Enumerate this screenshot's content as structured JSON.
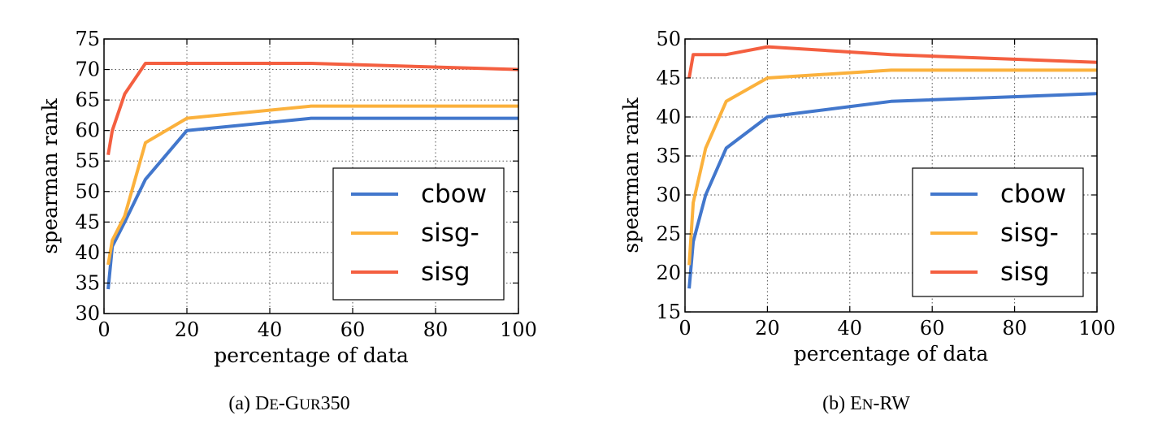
{
  "chart_data": [
    {
      "type": "line",
      "xlabel": "percentage of data",
      "ylabel": "spearman rank",
      "xlim": [
        0,
        100
      ],
      "ylim": [
        30,
        75
      ],
      "xticks": [
        0,
        20,
        40,
        60,
        80,
        100
      ],
      "yticks": [
        30,
        35,
        40,
        45,
        50,
        55,
        60,
        65,
        70,
        75
      ],
      "grid": true,
      "legend_position": "lower-right",
      "caption_prefix": "(a) ",
      "caption_parts": [
        {
          "text": "D",
          "small": false
        },
        {
          "text": "E",
          "small": true
        },
        {
          "text": "-G",
          "small": false
        },
        {
          "text": "UR",
          "small": true
        },
        {
          "text": "350",
          "small": false
        }
      ],
      "series": [
        {
          "name": "cbow",
          "color": "#4277cc",
          "x": [
            1,
            2,
            5,
            10,
            20,
            50,
            100
          ],
          "y": [
            34,
            41,
            45,
            52,
            60,
            62,
            62
          ]
        },
        {
          "name": "sisg-",
          "color": "#fbb13c",
          "x": [
            1,
            2,
            5,
            10,
            20,
            50,
            100
          ],
          "y": [
            38,
            42,
            46,
            58,
            62,
            64,
            64
          ]
        },
        {
          "name": "sisg",
          "color": "#f45f40",
          "x": [
            1,
            2,
            5,
            10,
            20,
            50,
            100
          ],
          "y": [
            56,
            60,
            66,
            71,
            71,
            71,
            70
          ]
        }
      ]
    },
    {
      "type": "line",
      "xlabel": "percentage of data",
      "ylabel": "spearman rank",
      "xlim": [
        0,
        100
      ],
      "ylim": [
        15,
        50
      ],
      "xticks": [
        0,
        20,
        40,
        60,
        80,
        100
      ],
      "yticks": [
        15,
        20,
        25,
        30,
        35,
        40,
        45,
        50
      ],
      "grid": true,
      "legend_position": "lower-right",
      "caption_prefix": "(b) ",
      "caption_parts": [
        {
          "text": "E",
          "small": false
        },
        {
          "text": "N",
          "small": true
        },
        {
          "text": "-RW",
          "small": false
        }
      ],
      "series": [
        {
          "name": "cbow",
          "color": "#4277cc",
          "x": [
            1,
            2,
            5,
            10,
            20,
            50,
            100
          ],
          "y": [
            18,
            24,
            30,
            36,
            40,
            42,
            43
          ]
        },
        {
          "name": "sisg-",
          "color": "#fbb13c",
          "x": [
            1,
            2,
            5,
            10,
            20,
            50,
            100
          ],
          "y": [
            21,
            29,
            36,
            42,
            45,
            46,
            46
          ]
        },
        {
          "name": "sisg",
          "color": "#f45f40",
          "x": [
            1,
            2,
            5,
            10,
            20,
            50,
            100
          ],
          "y": [
            45,
            48,
            48,
            48,
            49,
            48,
            47
          ]
        }
      ]
    }
  ]
}
